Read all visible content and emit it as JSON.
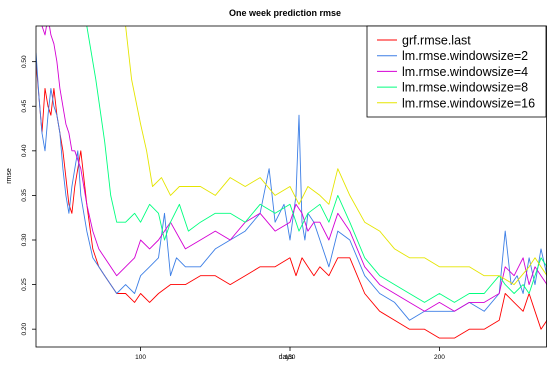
{
  "chart_data": {
    "type": "line",
    "title": "One week prediction rmse",
    "xlabel": "days",
    "ylabel": "rmse",
    "xlim": [
      65,
      236
    ],
    "ylim": [
      0.18,
      0.54
    ],
    "x_ticks": [
      100,
      150,
      200
    ],
    "y_ticks": [
      0.2,
      0.25,
      0.3,
      0.35,
      0.4,
      0.45,
      0.5
    ],
    "legend_position": "top-right",
    "grid": false,
    "series": [
      {
        "name": "grf.rmse.last",
        "color": "#ff0000",
        "x": [
          65,
          66,
          67,
          68,
          69,
          70,
          71,
          72,
          73,
          74,
          75,
          76,
          77,
          78,
          79,
          80,
          82,
          84,
          86,
          88,
          90,
          92,
          95,
          98,
          100,
          103,
          106,
          110,
          115,
          120,
          125,
          130,
          135,
          140,
          145,
          150,
          152,
          154,
          156,
          158,
          160,
          163,
          166,
          170,
          175,
          180,
          185,
          190,
          195,
          200,
          205,
          210,
          215,
          220,
          222,
          225,
          228,
          230,
          232,
          234,
          236
        ],
        "y": [
          0.5,
          0.46,
          0.42,
          0.47,
          0.45,
          0.44,
          0.47,
          0.44,
          0.42,
          0.4,
          0.37,
          0.34,
          0.33,
          0.36,
          0.38,
          0.4,
          0.34,
          0.29,
          0.27,
          0.26,
          0.25,
          0.24,
          0.24,
          0.23,
          0.24,
          0.23,
          0.24,
          0.25,
          0.25,
          0.26,
          0.26,
          0.25,
          0.26,
          0.27,
          0.27,
          0.28,
          0.26,
          0.28,
          0.27,
          0.26,
          0.27,
          0.26,
          0.28,
          0.28,
          0.24,
          0.22,
          0.21,
          0.2,
          0.2,
          0.19,
          0.19,
          0.2,
          0.2,
          0.21,
          0.24,
          0.23,
          0.22,
          0.24,
          0.22,
          0.2,
          0.21
        ]
      },
      {
        "name": "lm.rmse.windowsize=2",
        "color": "#3d7fe6",
        "x": [
          65,
          66,
          67,
          68,
          69,
          70,
          71,
          72,
          73,
          74,
          75,
          76,
          77,
          78,
          79,
          80,
          82,
          84,
          86,
          88,
          90,
          92,
          95,
          98,
          100,
          103,
          106,
          108,
          110,
          112,
          115,
          120,
          125,
          130,
          135,
          140,
          143,
          145,
          148,
          150,
          152,
          153,
          154,
          155,
          156,
          158,
          160,
          163,
          166,
          170,
          175,
          180,
          185,
          190,
          195,
          200,
          205,
          210,
          215,
          220,
          222,
          224,
          226,
          228,
          230,
          232,
          234,
          236
        ],
        "y": [
          0.51,
          0.46,
          0.42,
          0.4,
          0.44,
          0.47,
          0.45,
          0.44,
          0.42,
          0.38,
          0.35,
          0.33,
          0.36,
          0.38,
          0.4,
          0.35,
          0.31,
          0.28,
          0.27,
          0.26,
          0.25,
          0.24,
          0.25,
          0.24,
          0.26,
          0.27,
          0.28,
          0.33,
          0.26,
          0.28,
          0.27,
          0.27,
          0.29,
          0.3,
          0.31,
          0.33,
          0.38,
          0.32,
          0.34,
          0.3,
          0.35,
          0.44,
          0.32,
          0.3,
          0.33,
          0.32,
          0.3,
          0.27,
          0.31,
          0.3,
          0.26,
          0.24,
          0.23,
          0.21,
          0.22,
          0.22,
          0.22,
          0.23,
          0.22,
          0.24,
          0.31,
          0.25,
          0.26,
          0.24,
          0.28,
          0.25,
          0.29,
          0.26
        ]
      },
      {
        "name": "lm.rmse.windowsize=4",
        "color": "#d400d4",
        "x": [
          65,
          66,
          67,
          68,
          69,
          70,
          71,
          72,
          73,
          74,
          75,
          76,
          77,
          78,
          79,
          80,
          82,
          84,
          86,
          88,
          90,
          92,
          95,
          98,
          100,
          103,
          106,
          110,
          115,
          120,
          125,
          130,
          135,
          140,
          145,
          150,
          152,
          154,
          156,
          158,
          160,
          163,
          166,
          170,
          175,
          180,
          185,
          190,
          195,
          200,
          205,
          210,
          215,
          220,
          222,
          225,
          228,
          230,
          232,
          234,
          236
        ],
        "y": [
          0.56,
          0.55,
          0.54,
          0.53,
          0.55,
          0.53,
          0.52,
          0.5,
          0.47,
          0.45,
          0.43,
          0.42,
          0.4,
          0.4,
          0.39,
          0.38,
          0.34,
          0.31,
          0.29,
          0.28,
          0.27,
          0.26,
          0.27,
          0.28,
          0.3,
          0.29,
          0.3,
          0.32,
          0.29,
          0.3,
          0.31,
          0.3,
          0.32,
          0.33,
          0.31,
          0.32,
          0.34,
          0.33,
          0.31,
          0.32,
          0.32,
          0.3,
          0.33,
          0.31,
          0.27,
          0.25,
          0.24,
          0.23,
          0.22,
          0.23,
          0.22,
          0.23,
          0.23,
          0.24,
          0.27,
          0.26,
          0.28,
          0.25,
          0.27,
          0.26,
          0.25
        ]
      },
      {
        "name": "lm.rmse.windowsize=8",
        "color": "#00ff7f",
        "x": [
          82,
          85,
          88,
          90,
          92,
          95,
          98,
          100,
          103,
          106,
          108,
          110,
          113,
          116,
          120,
          125,
          130,
          135,
          140,
          145,
          150,
          153,
          156,
          160,
          163,
          166,
          170,
          175,
          180,
          185,
          190,
          195,
          200,
          205,
          210,
          215,
          220,
          222,
          225,
          228,
          230,
          232,
          234,
          236
        ],
        "y": [
          0.54,
          0.48,
          0.41,
          0.35,
          0.32,
          0.32,
          0.33,
          0.32,
          0.34,
          0.33,
          0.3,
          0.32,
          0.34,
          0.31,
          0.32,
          0.33,
          0.33,
          0.32,
          0.34,
          0.33,
          0.34,
          0.31,
          0.33,
          0.34,
          0.32,
          0.35,
          0.32,
          0.28,
          0.26,
          0.25,
          0.24,
          0.23,
          0.24,
          0.23,
          0.24,
          0.24,
          0.26,
          0.25,
          0.24,
          0.25,
          0.24,
          0.26,
          0.28,
          0.27
        ]
      },
      {
        "name": "lm.rmse.windowsize=16",
        "color": "#e5e500",
        "x": [
          95,
          97,
          100,
          102,
          104,
          107,
          110,
          113,
          116,
          120,
          125,
          130,
          135,
          140,
          145,
          150,
          153,
          156,
          160,
          163,
          166,
          170,
          175,
          180,
          185,
          190,
          195,
          200,
          205,
          210,
          215,
          220,
          225,
          230,
          232,
          234,
          236
        ],
        "y": [
          0.54,
          0.48,
          0.43,
          0.4,
          0.36,
          0.37,
          0.35,
          0.36,
          0.36,
          0.36,
          0.35,
          0.37,
          0.36,
          0.37,
          0.35,
          0.36,
          0.34,
          0.36,
          0.35,
          0.34,
          0.38,
          0.35,
          0.32,
          0.31,
          0.29,
          0.28,
          0.28,
          0.27,
          0.27,
          0.27,
          0.26,
          0.26,
          0.25,
          0.27,
          0.28,
          0.27,
          0.26
        ]
      }
    ]
  }
}
